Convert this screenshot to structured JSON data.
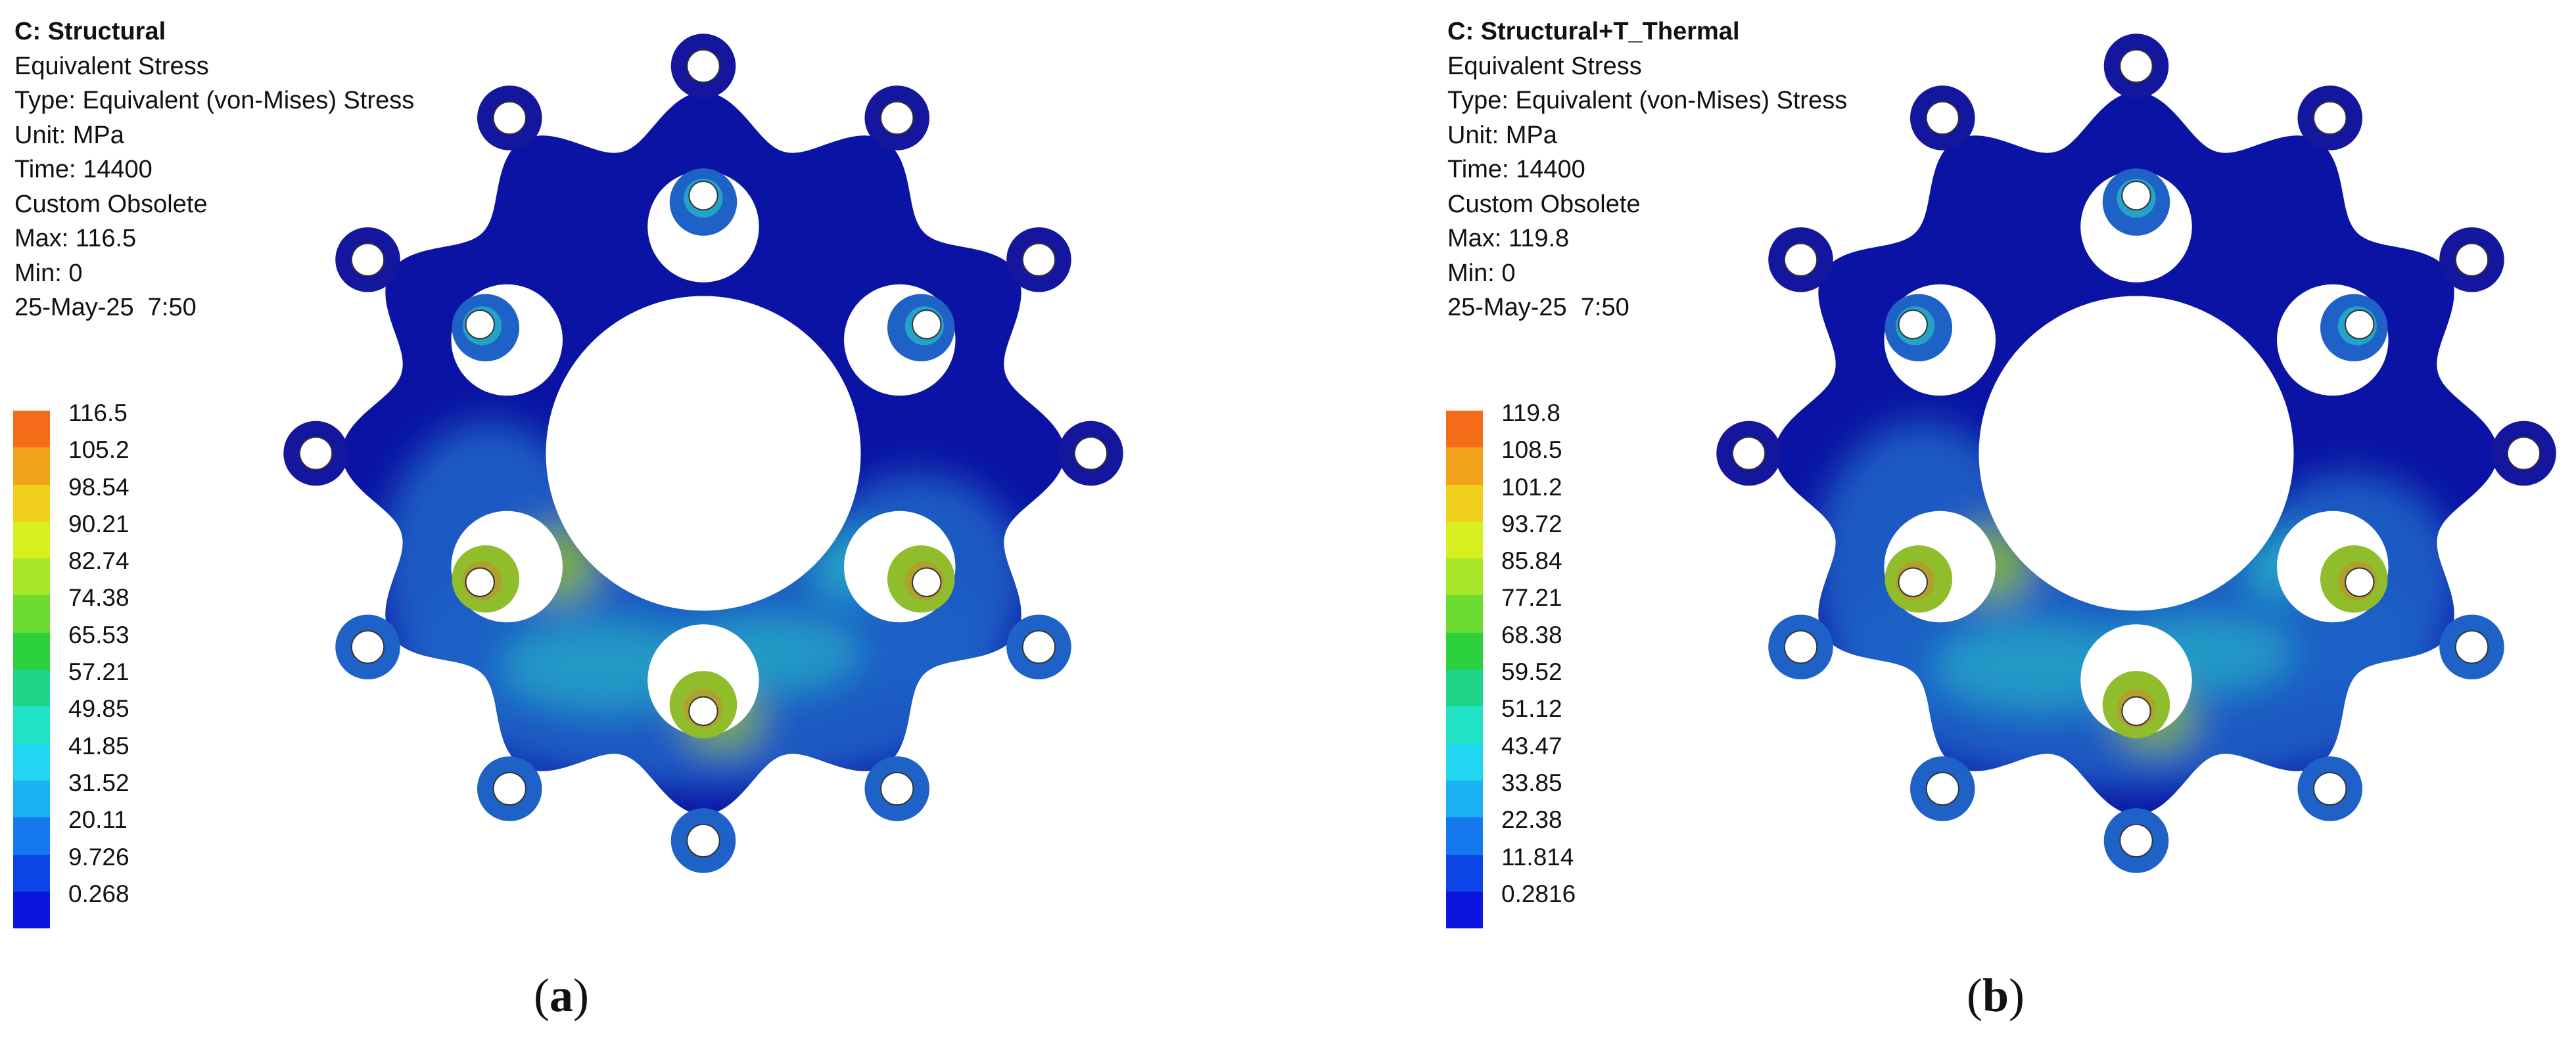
{
  "panels": [
    {
      "id": "a",
      "info": {
        "title": "C: Structural",
        "lines": [
          "Equivalent Stress",
          "Type: Equivalent (von-Mises) Stress",
          "Unit: MPa",
          "Time: 14400",
          "Custom Obsolete",
          "Max: 116.5",
          "Min: 0",
          "25-May-25  7:50"
        ]
      },
      "legend": [
        "116.5",
        "105.2",
        "98.54",
        "90.21",
        "82.74",
        "74.38",
        "65.53",
        "57.21",
        "49.85",
        "41.85",
        "31.52",
        "20.11",
        "9.726",
        "0.268"
      ],
      "caption": {
        "open": "(",
        "letter": "a",
        "close": ")"
      }
    },
    {
      "id": "b",
      "info": {
        "title": "C: Structural+T_Thermal",
        "lines": [
          "Equivalent Stress",
          "Type: Equivalent (von-Mises) Stress",
          "Unit: MPa",
          "Time: 14400",
          "Custom Obsolete",
          "Max: 119.8",
          "Min: 0",
          "25-May-25  7:50"
        ]
      },
      "legend": [
        "119.8",
        "108.5",
        "101.2",
        "93.72",
        "85.84",
        "77.21",
        "68.38",
        "59.52",
        "51.12",
        "43.47",
        "33.85",
        "22.38",
        "11.814",
        "0.2816"
      ],
      "caption": {
        "open": "(",
        "letter": "b",
        "close": ")"
      }
    }
  ],
  "legend_colors": [
    "#f46b1a",
    "#f2a31c",
    "#f0d01c",
    "#d7ee1f",
    "#a8e628",
    "#6cdc32",
    "#2dd13d",
    "#1fd58a",
    "#20e2c5",
    "#20d6f0",
    "#1ab2f2",
    "#1478ef",
    "#0c44e6",
    "#0a14dc"
  ],
  "part_colors": {
    "base": "#0a13a3",
    "stress_low": "#1f62c7",
    "stress_mid": "#26b3c7",
    "stress_high": "#8fbd2b",
    "hot": "#b79a2c",
    "ring": "#14169e"
  }
}
